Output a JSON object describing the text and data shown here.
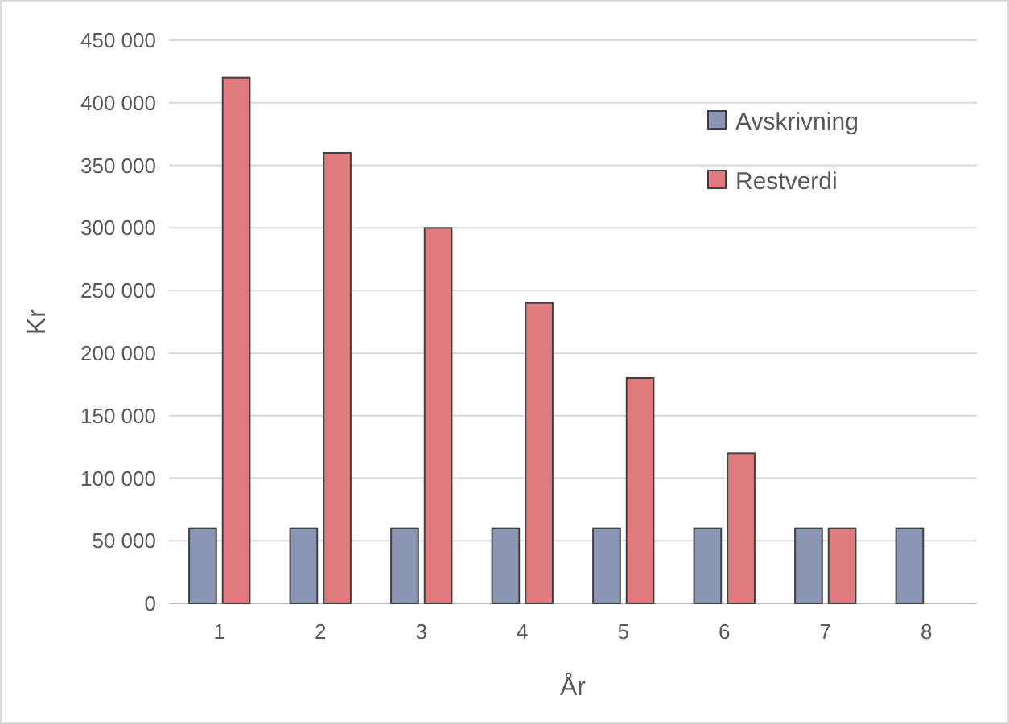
{
  "chart_data": {
    "type": "bar",
    "xlabel": "År",
    "ylabel": "Kr",
    "categories": [
      "1",
      "2",
      "3",
      "4",
      "5",
      "6",
      "7",
      "8"
    ],
    "series": [
      {
        "name": "Avskrivning",
        "color": "#8b96b4",
        "values": [
          60000,
          60000,
          60000,
          60000,
          60000,
          60000,
          60000,
          60000
        ]
      },
      {
        "name": "Restverdi",
        "color": "#e07b7d",
        "values": [
          420000,
          360000,
          300000,
          240000,
          180000,
          120000,
          60000,
          0
        ]
      }
    ],
    "ylim": [
      0,
      450000
    ],
    "yticks": [
      {
        "value": 0,
        "label": "0"
      },
      {
        "value": 50000,
        "label": "50 000"
      },
      {
        "value": 100000,
        "label": "100 000"
      },
      {
        "value": 150000,
        "label": "150 000"
      },
      {
        "value": 200000,
        "label": "200 000"
      },
      {
        "value": 250000,
        "label": "250 000"
      },
      {
        "value": 300000,
        "label": "300 000"
      },
      {
        "value": 350000,
        "label": "350 000"
      },
      {
        "value": 400000,
        "label": "400 000"
      },
      {
        "value": 450000,
        "label": "450 000"
      }
    ],
    "grid": "y",
    "legend": "top right"
  }
}
